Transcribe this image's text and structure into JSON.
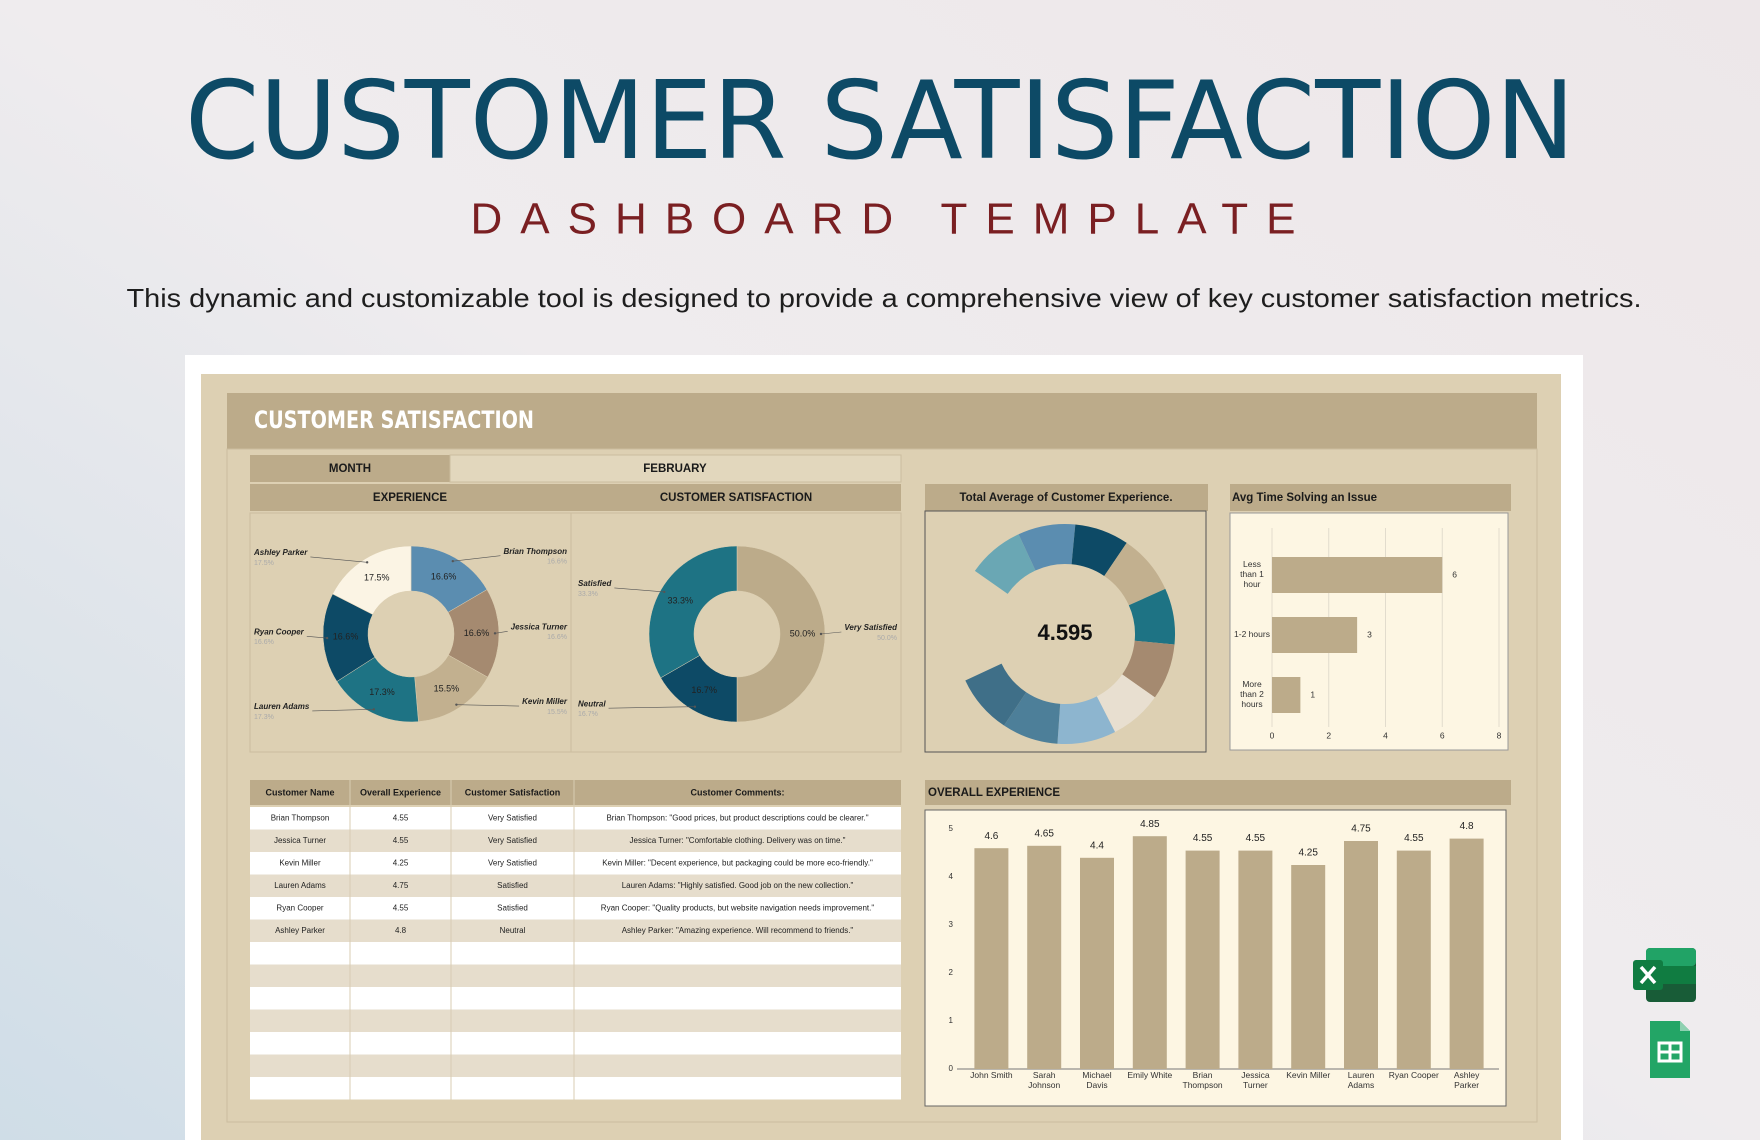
{
  "header": {
    "title": "CUSTOMER SATISFACTION",
    "subtitle": "DASHBOARD TEMPLATE",
    "description": "This dynamic and customizable tool is designed to provide a comprehensive view of key customer satisfaction metrics."
  },
  "dashboard": {
    "title": "CUSTOMER SATISFACTION",
    "month_label": "MONTH",
    "month": "FEBRUARY"
  },
  "chart_data": [
    {
      "type": "donut",
      "title": "EXPERIENCE",
      "categories": [
        "Brian Thompson",
        "Jessica Turner",
        "Kevin Miller",
        "Lauren Adams",
        "Ryan Cooper",
        "Ashley Parker"
      ],
      "values": [
        16.6,
        16.6,
        15.5,
        17.3,
        16.6,
        17.5
      ],
      "value_labels": [
        "16.6%",
        "16.6%",
        "15.5%",
        "17.3%",
        "16.6%",
        "17.5%"
      ],
      "colors": [
        "#5b8db0",
        "#a58a70",
        "#c2b08f",
        "#1e7384",
        "#0d4a66",
        "#fbf4e4"
      ]
    },
    {
      "type": "donut",
      "title": "CUSTOMER SATISFACTION",
      "categories": [
        "Very Satisfied",
        "Neutral",
        "Satisfied"
      ],
      "values": [
        50.0,
        16.7,
        33.3
      ],
      "value_labels": [
        "50.0%",
        "16.7%",
        "33.3%"
      ],
      "colors": [
        "#bcab8a",
        "#0d4a66",
        "#1e7384"
      ]
    },
    {
      "type": "ring",
      "title": "Total Average of Customer Experience.",
      "value": 4.595,
      "colors": [
        "#6aa7b4",
        "#5b8db0",
        "#0d4a66",
        "#c2b08f",
        "#1e7384",
        "#a58a70",
        "#e8dfd0",
        "#8db5cf",
        "#4d7f99",
        "#3f6f88"
      ]
    },
    {
      "type": "hbar",
      "title": "Avg Time Solving an Issue",
      "categories": [
        "Less than 1 hour",
        "1-2 hours",
        "More than 2 hours"
      ],
      "values": [
        6,
        3,
        1
      ],
      "color": "#bcab8a",
      "xlim": [
        0,
        8
      ],
      "xticks": [
        0,
        2,
        4,
        6,
        8
      ],
      "grid": true
    },
    {
      "type": "bar",
      "title": "OVERALL EXPERIENCE",
      "categories": [
        "John Smith",
        "Sarah Johnson",
        "Michael Davis",
        "Emily White",
        "Brian Thompson",
        "Jessica Turner",
        "Kevin Miller",
        "Lauren Adams",
        "Ryan Cooper",
        "Ashley Parker"
      ],
      "values": [
        4.6,
        4.65,
        4.4,
        4.85,
        4.55,
        4.55,
        4.25,
        4.75,
        4.55,
        4.8
      ],
      "color": "#bcab8a",
      "ylim": [
        0,
        5
      ],
      "yticks": [
        0,
        1,
        2,
        3,
        4,
        5
      ],
      "grid": false
    }
  ],
  "table": {
    "columns": [
      "Customer Name",
      "Overall Experience",
      "Customer Satisfaction",
      "Customer Comments:"
    ],
    "rows": [
      [
        "Brian Thompson",
        4.55,
        "Very Satisfied",
        "Brian Thompson: \"Good prices, but product descriptions could be clearer.\""
      ],
      [
        "Jessica Turner",
        4.55,
        "Very Satisfied",
        "Jessica Turner: \"Comfortable clothing. Delivery was on time.\""
      ],
      [
        "Kevin Miller",
        4.25,
        "Very Satisfied",
        "Kevin Miller: \"Decent experience, but packaging could be more eco-friendly.\""
      ],
      [
        "Lauren Adams",
        4.75,
        "Satisfied",
        "Lauren Adams: \"Highly satisfied. Good job on the new collection.\""
      ],
      [
        "Ryan Cooper",
        4.55,
        "Satisfied",
        "Ryan Cooper: \"Quality products, but website navigation needs improvement.\""
      ],
      [
        "Ashley Parker",
        4.8,
        "Neutral",
        "Ashley Parker: \"Amazing experience. Will recommend to friends.\""
      ]
    ]
  }
}
